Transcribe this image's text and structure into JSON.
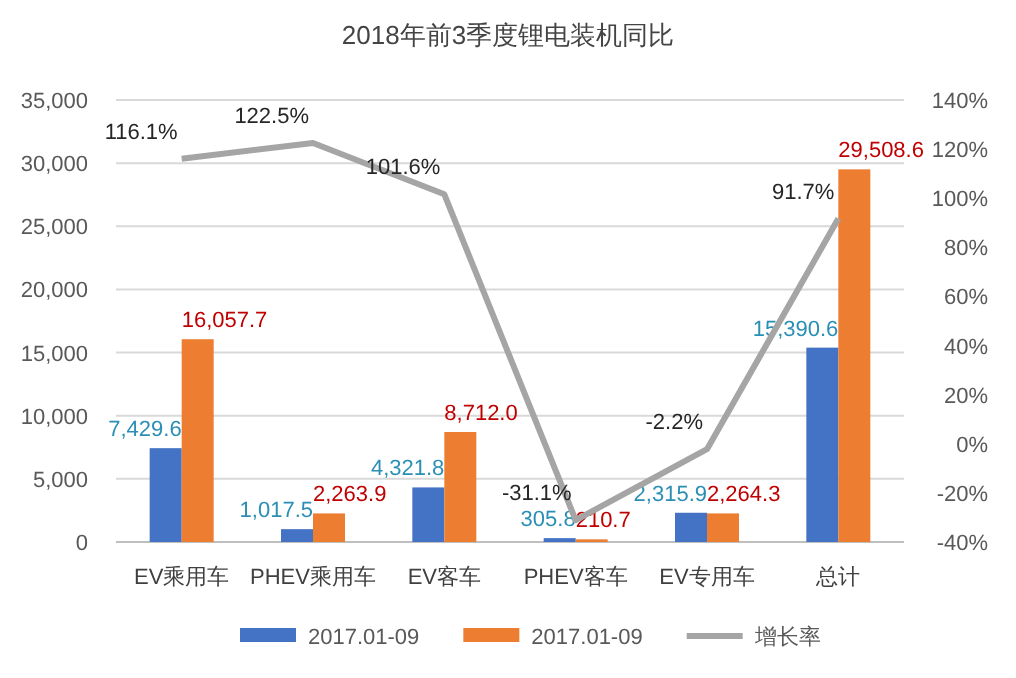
{
  "chart_data": {
    "type": "bar",
    "title": "2018年前3季度锂电装机同比",
    "categories": [
      "EV乘用车",
      "PHEV乘用车",
      "EV客车",
      "PHEV客车",
      "EV专用车",
      "总计"
    ],
    "series": [
      {
        "name": "2017.01-09",
        "color": "#4472c4",
        "values": [
          7429.6,
          1017.5,
          4321.8,
          305.8,
          2315.9,
          15390.6
        ],
        "value_labels": [
          "7,429.6",
          "1,017.5",
          "4,321.8",
          "305.8",
          "2,315.9",
          "15,390.6"
        ]
      },
      {
        "name": "2017.01-09",
        "color": "#ed7d31",
        "values": [
          16057.7,
          2263.9,
          8712.0,
          210.7,
          2264.3,
          29508.6
        ],
        "value_labels": [
          "16,057.7",
          "2,263.9",
          "8,712.0",
          "210.7",
          "2,264.3",
          "29,508.6"
        ]
      },
      {
        "name": "增长率",
        "type": "line",
        "axis": "y2",
        "color": "#a5a5a5",
        "values": [
          116.1,
          122.5,
          101.6,
          -31.1,
          -2.2,
          91.7
        ],
        "value_labels": [
          "116.1%",
          "122.5%",
          "101.6%",
          "-31.1%",
          "-2.2%",
          "91.7%"
        ]
      }
    ],
    "ylim": [
      0,
      35000
    ],
    "yticks": [
      {
        "value": 0,
        "label": "0"
      },
      {
        "value": 5000,
        "label": "5,000"
      },
      {
        "value": 10000,
        "label": "10,000"
      },
      {
        "value": 15000,
        "label": "15,000"
      },
      {
        "value": 20000,
        "label": "20,000"
      },
      {
        "value": 25000,
        "label": "25,000"
      },
      {
        "value": 30000,
        "label": "30,000"
      },
      {
        "value": 35000,
        "label": "35,000"
      }
    ],
    "y2lim": [
      -40,
      140
    ],
    "y2ticks": [
      {
        "value": -40,
        "label": "-40%"
      },
      {
        "value": -20,
        "label": "-20%"
      },
      {
        "value": 0,
        "label": "0%"
      },
      {
        "value": 20,
        "label": "20%"
      },
      {
        "value": 40,
        "label": "40%"
      },
      {
        "value": 60,
        "label": "60%"
      },
      {
        "value": 80,
        "label": "80%"
      },
      {
        "value": 100,
        "label": "100%"
      },
      {
        "value": 120,
        "label": "120%"
      },
      {
        "value": 140,
        "label": "140%"
      }
    ],
    "grid": "y",
    "legend": "bottom"
  }
}
